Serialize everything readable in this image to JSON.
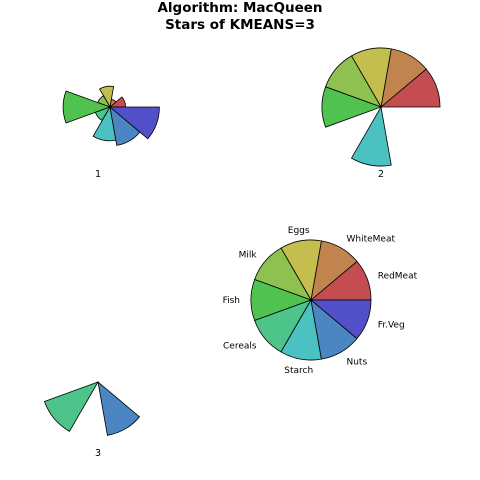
{
  "chart_data": {
    "type": "star-segments",
    "title": "Algorithm: MacQueen",
    "subtitle": "Stars of KMEANS=3",
    "variables": [
      "RedMeat",
      "WhiteMeat",
      "Eggs",
      "Milk",
      "Fish",
      "Cereals",
      "Starch",
      "Nuts",
      "Fr.Veg"
    ],
    "colors": [
      "#C44D51",
      "#C1844E",
      "#C3BE4E",
      "#8EC150",
      "#50C24F",
      "#4DC489",
      "#4CC1C2",
      "#4C86C2",
      "#5150C9"
    ],
    "clusters": [
      {
        "label": "1",
        "values": [
          0.3,
          0.15,
          0.4,
          0.25,
          0.9,
          0.3,
          0.65,
          0.75,
          0.95
        ]
      },
      {
        "label": "2",
        "values": [
          1.0,
          1.0,
          1.0,
          1.0,
          1.0,
          0.0,
          1.0,
          0.0,
          0.0
        ]
      },
      {
        "label": "3",
        "values": [
          0.0,
          0.0,
          0.0,
          0.0,
          0.0,
          1.0,
          0.0,
          0.95,
          0.0
        ]
      }
    ]
  }
}
